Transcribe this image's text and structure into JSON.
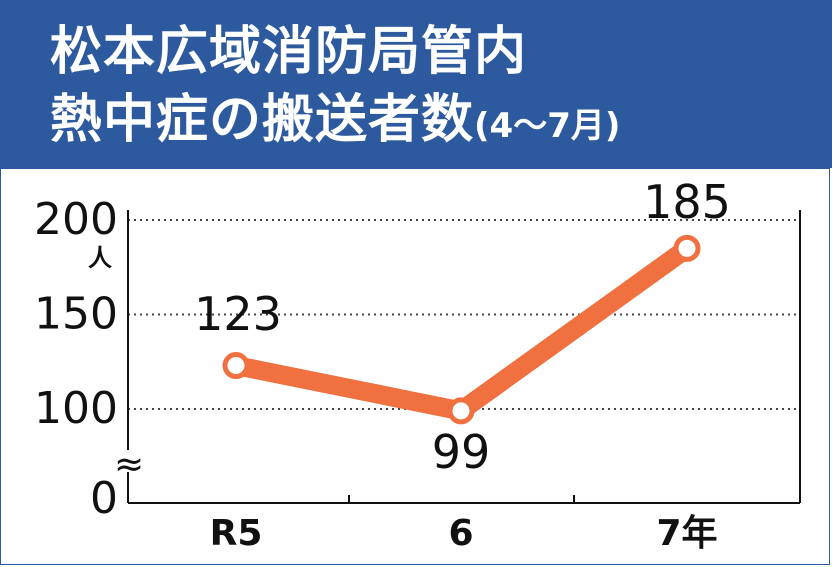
{
  "header": {
    "title_line1": "松本広域消防局管内",
    "title_line2": "熱中症の搬送者数",
    "title_period": "(4～7月)"
  },
  "colors": {
    "header_bg": "#2d5a9e",
    "line": "#f07040",
    "marker_fill": "#ffffff",
    "grid": "#444444"
  },
  "chart_data": {
    "type": "line",
    "title": "松本広域消防局管内 熱中症の搬送者数(4～7月)",
    "categories": [
      "R5",
      "6",
      "7年"
    ],
    "series": [
      {
        "values": [
          123,
          99,
          185
        ]
      }
    ],
    "ylabel": "人",
    "yticks": [
      0,
      100,
      150,
      200
    ],
    "ylim": [
      0,
      200
    ],
    "y_axis_break": true,
    "grid": true
  }
}
